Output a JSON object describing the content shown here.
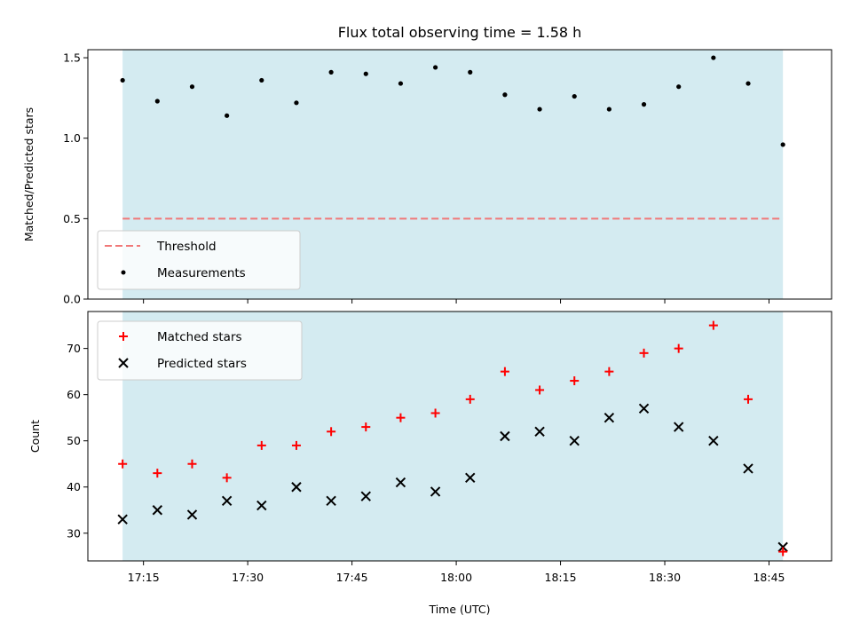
{
  "chart_data": [
    {
      "type": "scatter",
      "title": "Flux total observing time = 1.58 h",
      "xlabel": "",
      "ylabel": "Matched/Predicted stars",
      "x": [
        "17:12",
        "17:17",
        "17:22",
        "17:27",
        "17:32",
        "17:37",
        "17:42",
        "17:47",
        "17:52",
        "17:57",
        "18:02",
        "18:07",
        "18:12",
        "18:17",
        "18:22",
        "18:27",
        "18:32",
        "18:37",
        "18:42",
        "18:47"
      ],
      "ylim": [
        0,
        1.55
      ],
      "xlim": [
        "17:07",
        "18:54"
      ],
      "yticks": [
        0.0,
        0.5,
        1.0,
        1.5
      ],
      "ytick_labels": [
        "0.0",
        "0.5",
        "1.0",
        "1.5"
      ],
      "threshold": 0.5,
      "shaded_range": [
        "17:12",
        "18:47"
      ],
      "shade_color": "#d4ebf1",
      "threshold_color": "#f07878",
      "grid": false,
      "legend_position": "lower-left",
      "series": [
        {
          "name": "Measurements",
          "marker": "dot",
          "color": "#000000",
          "values": [
            1.36,
            1.23,
            1.32,
            1.14,
            1.36,
            1.22,
            1.41,
            1.4,
            1.34,
            1.44,
            1.41,
            1.27,
            1.18,
            1.26,
            1.18,
            1.21,
            1.32,
            1.5,
            1.34,
            0.96
          ]
        }
      ],
      "legend": [
        "Threshold",
        "Measurements"
      ]
    },
    {
      "type": "scatter",
      "title": "",
      "xlabel": "Time (UTC)",
      "ylabel": "Count",
      "x": [
        "17:12",
        "17:17",
        "17:22",
        "17:27",
        "17:32",
        "17:37",
        "17:42",
        "17:47",
        "17:52",
        "17:57",
        "18:02",
        "18:07",
        "18:12",
        "18:17",
        "18:22",
        "18:27",
        "18:32",
        "18:37",
        "18:42",
        "18:47"
      ],
      "ylim": [
        24,
        78
      ],
      "xlim": [
        "17:07",
        "18:54"
      ],
      "yticks": [
        30,
        40,
        50,
        60,
        70
      ],
      "ytick_labels": [
        "30",
        "40",
        "50",
        "60",
        "70"
      ],
      "xticks": [
        "17:15",
        "17:30",
        "17:45",
        "18:00",
        "18:15",
        "18:30",
        "18:45"
      ],
      "xtick_labels": [
        "17:15",
        "17:30",
        "17:45",
        "18:00",
        "18:15",
        "18:30",
        "18:45"
      ],
      "shaded_range": [
        "17:12",
        "18:47"
      ],
      "shade_color": "#d4ebf1",
      "grid": false,
      "legend_position": "upper-left",
      "series": [
        {
          "name": "Matched stars",
          "marker": "plus",
          "color": "#ff0000",
          "values": [
            45,
            43,
            45,
            42,
            49,
            49,
            52,
            53,
            55,
            56,
            59,
            65,
            61,
            63,
            65,
            69,
            70,
            75,
            59,
            26
          ]
        },
        {
          "name": "Predicted stars",
          "marker": "x",
          "color": "#000000",
          "values": [
            33,
            35,
            34,
            37,
            36,
            40,
            37,
            38,
            41,
            39,
            42,
            51,
            52,
            50,
            55,
            57,
            53,
            50,
            44,
            27
          ]
        }
      ]
    }
  ]
}
